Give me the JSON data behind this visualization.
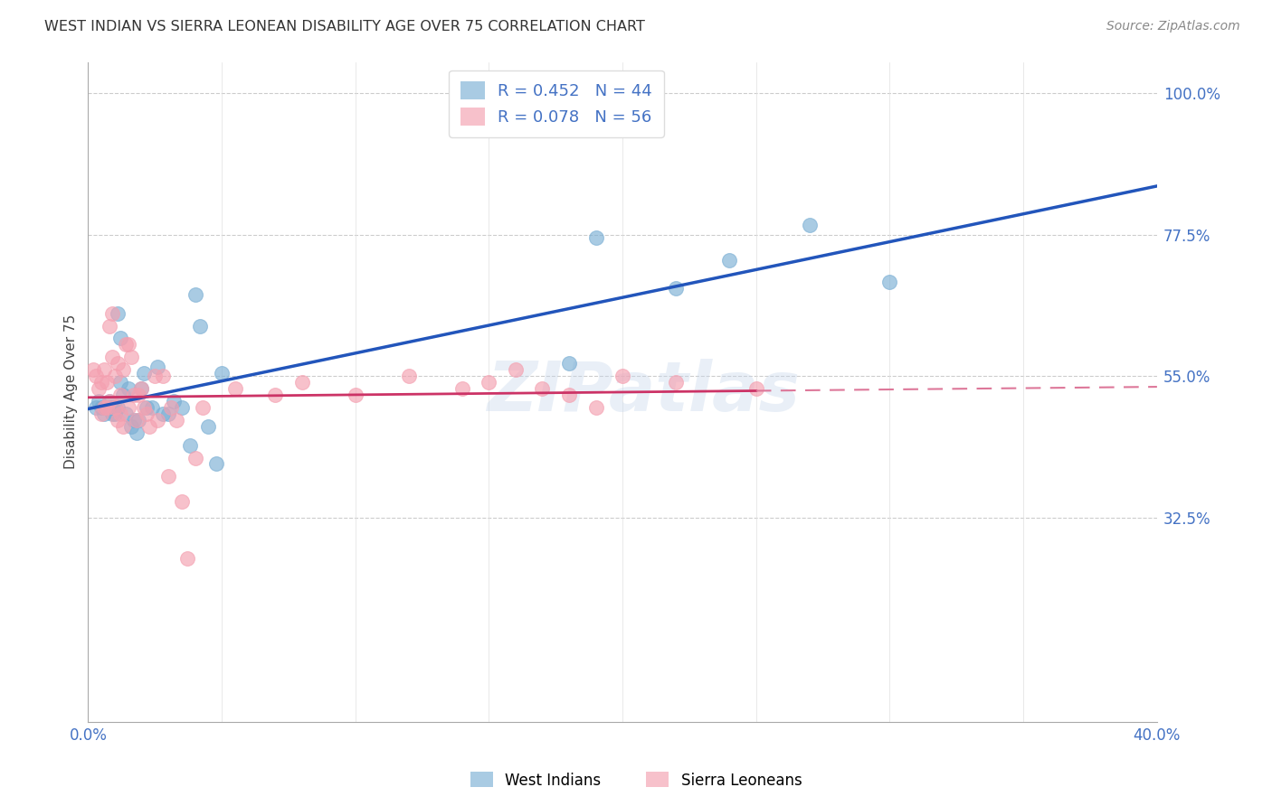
{
  "title": "WEST INDIAN VS SIERRA LEONEAN DISABILITY AGE OVER 75 CORRELATION CHART",
  "source": "Source: ZipAtlas.com",
  "ylabel": "Disability Age Over 75",
  "xlim": [
    0.0,
    0.4
  ],
  "ylim": [
    0.0,
    1.05
  ],
  "ytick_positions": [
    0.325,
    0.55,
    0.775,
    1.0
  ],
  "ytick_labels": [
    "32.5%",
    "55.0%",
    "77.5%",
    "100.0%"
  ],
  "tick_color": "#4472c4",
  "west_indian_R": 0.452,
  "west_indian_N": 44,
  "sierra_leonean_R": 0.078,
  "sierra_leonean_N": 56,
  "west_indian_color": "#7bafd4",
  "sierra_leonean_color": "#f4a0b0",
  "trend_blue_color": "#2255bb",
  "trend_pink_solid_color": "#cc3366",
  "trend_pink_dash_color": "#dd7799",
  "watermark": "ZIPatlas",
  "background_color": "#ffffff",
  "grid_color": "#cccccc",
  "west_indian_x": [
    0.003,
    0.004,
    0.005,
    0.006,
    0.006,
    0.007,
    0.008,
    0.008,
    0.009,
    0.009,
    0.01,
    0.01,
    0.011,
    0.011,
    0.012,
    0.012,
    0.013,
    0.014,
    0.015,
    0.016,
    0.017,
    0.018,
    0.019,
    0.02,
    0.021,
    0.022,
    0.024,
    0.026,
    0.028,
    0.03,
    0.032,
    0.035,
    0.038,
    0.04,
    0.042,
    0.045,
    0.048,
    0.05,
    0.19,
    0.22,
    0.27,
    0.3,
    0.24,
    0.18
  ],
  "west_indian_y": [
    0.5,
    0.51,
    0.5,
    0.5,
    0.49,
    0.5,
    0.51,
    0.5,
    0.5,
    0.49,
    0.49,
    0.5,
    0.5,
    0.65,
    0.61,
    0.54,
    0.52,
    0.49,
    0.53,
    0.47,
    0.48,
    0.46,
    0.48,
    0.53,
    0.555,
    0.5,
    0.5,
    0.565,
    0.49,
    0.49,
    0.51,
    0.5,
    0.44,
    0.68,
    0.63,
    0.47,
    0.41,
    0.555,
    0.77,
    0.69,
    0.79,
    0.7,
    0.735,
    0.57
  ],
  "sierra_leonean_x": [
    0.002,
    0.003,
    0.004,
    0.005,
    0.005,
    0.006,
    0.006,
    0.007,
    0.007,
    0.008,
    0.008,
    0.009,
    0.009,
    0.01,
    0.01,
    0.011,
    0.011,
    0.012,
    0.012,
    0.013,
    0.013,
    0.014,
    0.015,
    0.015,
    0.016,
    0.017,
    0.018,
    0.019,
    0.02,
    0.021,
    0.022,
    0.023,
    0.025,
    0.026,
    0.028,
    0.03,
    0.031,
    0.033,
    0.035,
    0.037,
    0.04,
    0.043,
    0.055,
    0.07,
    0.08,
    0.1,
    0.12,
    0.14,
    0.15,
    0.16,
    0.17,
    0.18,
    0.19,
    0.2,
    0.22,
    0.25
  ],
  "sierra_leonean_y": [
    0.56,
    0.55,
    0.53,
    0.49,
    0.54,
    0.5,
    0.56,
    0.54,
    0.5,
    0.51,
    0.63,
    0.58,
    0.65,
    0.5,
    0.55,
    0.57,
    0.48,
    0.49,
    0.52,
    0.47,
    0.56,
    0.6,
    0.6,
    0.5,
    0.58,
    0.52,
    0.48,
    0.52,
    0.53,
    0.5,
    0.49,
    0.47,
    0.55,
    0.48,
    0.55,
    0.39,
    0.5,
    0.48,
    0.35,
    0.26,
    0.42,
    0.5,
    0.53,
    0.52,
    0.54,
    0.52,
    0.55,
    0.53,
    0.54,
    0.56,
    0.53,
    0.52,
    0.5,
    0.55,
    0.54,
    0.53
  ],
  "title_fontsize": 11.5,
  "source_fontsize": 10,
  "tick_fontsize": 12,
  "ylabel_fontsize": 11
}
